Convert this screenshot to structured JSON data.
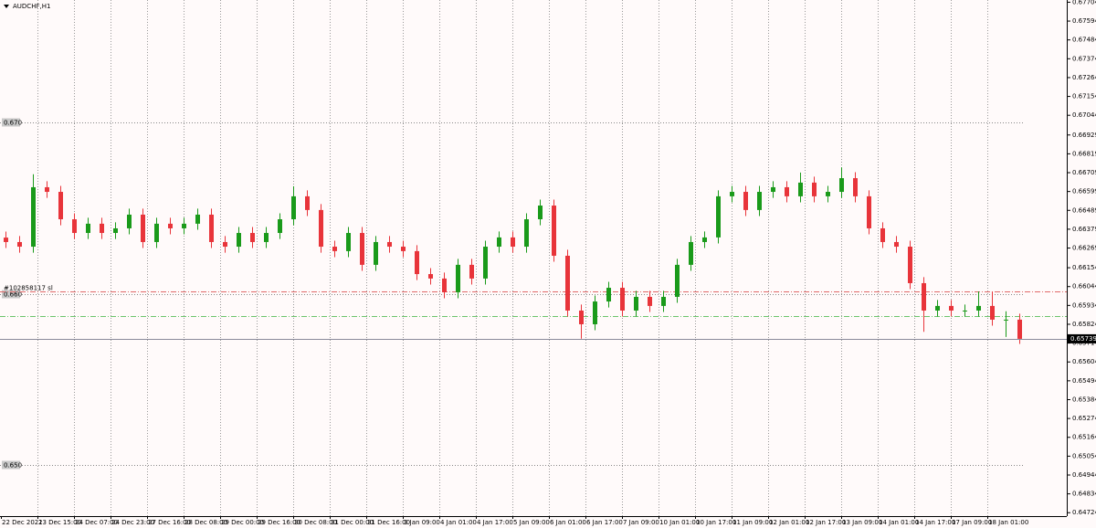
{
  "chart_data": {
    "type": "candlestick",
    "title": "AUDCHF,H1",
    "x_labels": [
      "22 Dec 2021",
      "23 Dec 15:00",
      "24 Dec 07:00",
      "24 Dec 23:00",
      "27 Dec 16:00",
      "28 Dec 08:00",
      "29 Dec 00:00",
      "29 Dec 16:00",
      "30 Dec 08:00",
      "31 Dec 00:00",
      "31 Dec 16:00",
      "3 Jan 09:00",
      "4 Jan 01:00",
      "4 Jan 17:00",
      "5 Jan 09:00",
      "6 Jan 01:00",
      "6 Jan 17:00",
      "7 Jan 09:00",
      "10 Jan 01:00",
      "10 Jan 17:00",
      "11 Jan 09:00",
      "12 Jan 01:00",
      "12 Jan 17:00",
      "13 Jan 09:00",
      "14 Jan 01:00",
      "14 Jan 17:00",
      "17 Jan 09:00",
      "18 Jan 01:00"
    ],
    "open": [
      0.6633,
      0.66304,
      0.66277,
      0.66624,
      0.66597,
      0.66437,
      0.66357,
      0.66411,
      0.66357,
      0.66384,
      0.66464,
      0.66304,
      0.66411,
      0.66384,
      0.66411,
      0.66464,
      0.66304,
      0.66277,
      0.66357,
      0.66304,
      0.66357,
      0.66437,
      0.66571,
      0.66491,
      0.66277,
      0.66251,
      0.66357,
      0.66171,
      0.66304,
      0.66277,
      0.66251,
      0.66117,
      0.66091,
      0.66011,
      0.66171,
      0.66091,
      0.66277,
      0.66331,
      0.66277,
      0.66437,
      0.66517,
      0.66224,
      0.65904,
      0.65824,
      0.65957,
      0.66037,
      0.65904,
      0.65984,
      0.65931,
      0.65984,
      0.66171,
      0.66304,
      0.66331,
      0.66571,
      0.66597,
      0.66491,
      0.66597,
      0.66624,
      0.66571,
      0.66651,
      0.66571,
      0.66597,
      0.66677,
      0.66571,
      0.66384,
      0.66304,
      0.66277,
      0.66064,
      0.65904,
      0.65931,
      0.65904,
      0.65904,
      0.65931,
      0.65851,
      0.65851
    ],
    "high": [
      0.66365,
      0.66339,
      0.667,
      0.66659,
      0.66632,
      0.66472,
      0.66446,
      0.66446,
      0.66419,
      0.66499,
      0.66499,
      0.66446,
      0.66446,
      0.66446,
      0.66499,
      0.66499,
      0.66339,
      0.66392,
      0.66392,
      0.66392,
      0.66472,
      0.6663,
      0.66606,
      0.66526,
      0.66312,
      0.66392,
      0.66392,
      0.66339,
      0.66339,
      0.66312,
      0.66286,
      0.66152,
      0.66126,
      0.66206,
      0.66206,
      0.66312,
      0.66366,
      0.66366,
      0.66472,
      0.66552,
      0.66552,
      0.66259,
      0.65939,
      0.65992,
      0.66072,
      0.66072,
      0.66019,
      0.66019,
      0.66019,
      0.66206,
      0.66339,
      0.66366,
      0.66606,
      0.66632,
      0.66632,
      0.66632,
      0.66659,
      0.66659,
      0.6671,
      0.66686,
      0.66632,
      0.6674,
      0.66712,
      0.66606,
      0.66419,
      0.66339,
      0.66312,
      0.66099,
      0.65966,
      0.65966,
      0.65939,
      0.66016,
      0.66016,
      0.659,
      0.65886
    ],
    "low": [
      0.66269,
      0.66242,
      0.66242,
      0.66562,
      0.66402,
      0.66322,
      0.66322,
      0.66322,
      0.66322,
      0.66349,
      0.66269,
      0.66269,
      0.66349,
      0.66349,
      0.66376,
      0.66269,
      0.66242,
      0.66242,
      0.66269,
      0.66269,
      0.66322,
      0.66402,
      0.66456,
      0.66242,
      0.66216,
      0.66216,
      0.66136,
      0.66136,
      0.66242,
      0.66216,
      0.66082,
      0.66056,
      0.65976,
      0.65976,
      0.66056,
      0.66056,
      0.66242,
      0.66242,
      0.66242,
      0.66402,
      0.66189,
      0.65869,
      0.6574,
      0.65789,
      0.65922,
      0.65869,
      0.65869,
      0.65896,
      0.65896,
      0.65949,
      0.66136,
      0.66269,
      0.66296,
      0.66536,
      0.66456,
      0.66456,
      0.66562,
      0.66536,
      0.66536,
      0.66536,
      0.66536,
      0.66562,
      0.66536,
      0.66349,
      0.66269,
      0.66242,
      0.66029,
      0.6578,
      0.65869,
      0.65869,
      0.65869,
      0.65869,
      0.65816,
      0.6575,
      0.65709
    ],
    "close": [
      0.66304,
      0.66277,
      0.66624,
      0.66597,
      0.66437,
      0.66357,
      0.66411,
      0.66357,
      0.66384,
      0.66464,
      0.66304,
      0.66411,
      0.66384,
      0.66411,
      0.66464,
      0.66304,
      0.66277,
      0.66357,
      0.66304,
      0.66357,
      0.66437,
      0.66571,
      0.66491,
      0.66277,
      0.66251,
      0.66357,
      0.66171,
      0.66304,
      0.66277,
      0.66251,
      0.66117,
      0.66091,
      0.66011,
      0.66171,
      0.66091,
      0.66277,
      0.66331,
      0.66277,
      0.66437,
      0.66517,
      0.66224,
      0.65904,
      0.65824,
      0.65957,
      0.66037,
      0.65904,
      0.65984,
      0.65931,
      0.65984,
      0.66171,
      0.66304,
      0.66331,
      0.66571,
      0.66597,
      0.66491,
      0.66597,
      0.66624,
      0.66571,
      0.66651,
      0.66571,
      0.66597,
      0.66677,
      0.66571,
      0.66384,
      0.66304,
      0.66277,
      0.66064,
      0.65904,
      0.65931,
      0.65904,
      0.65904,
      0.65931,
      0.65851,
      0.65851,
      0.65739
    ],
    "up_color": "#1a9a1a",
    "down_color": "#e8343a",
    "ylim": [
      0.64704,
      0.67717
    ],
    "yticks": [
      0.67704,
      0.67594,
      0.67484,
      0.67374,
      0.67264,
      0.67154,
      0.67044,
      0.66929,
      0.66819,
      0.66709,
      0.66599,
      0.66489,
      0.66379,
      0.66269,
      0.66154,
      0.66044,
      0.65934,
      0.65824,
      0.65714,
      0.65604,
      0.65494,
      0.65384,
      0.65274,
      0.65164,
      0.65054,
      0.64944,
      0.64834,
      0.64724
    ],
    "levels": [
      {
        "value": 0.67,
        "label": "0.670"
      },
      {
        "value": 0.66,
        "label": "0.660"
      },
      {
        "value": 0.65,
        "label": "0.650"
      }
    ],
    "order_lines": [
      {
        "name": "#102858117 sl",
        "value": 0.66016,
        "color": "#e06a6a"
      },
      {
        "value": 0.65872,
        "color": "#6cc46c"
      }
    ],
    "last_price": 0.65739
  }
}
